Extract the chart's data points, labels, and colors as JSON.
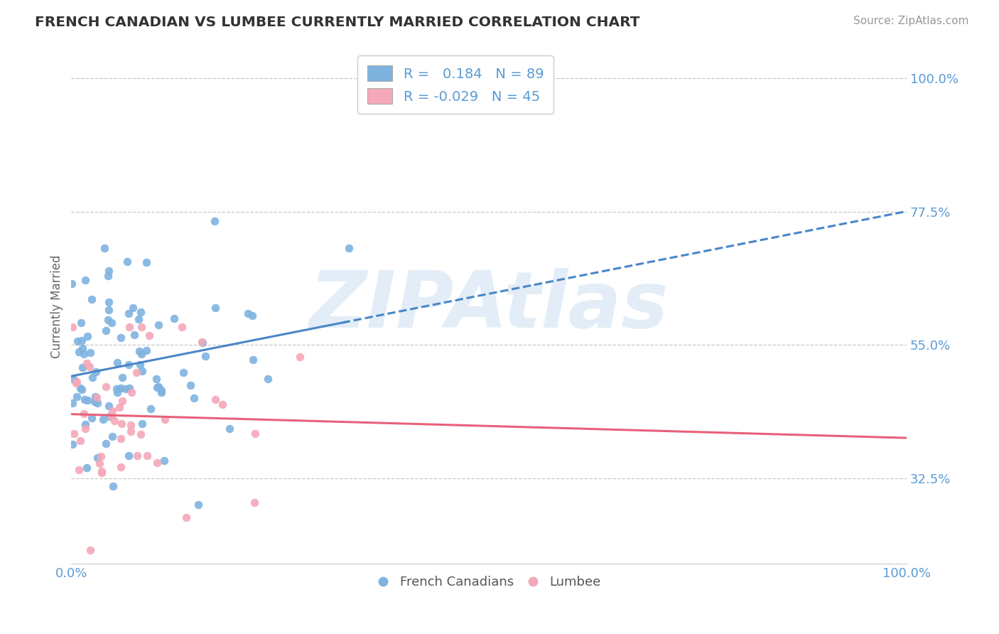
{
  "title": "FRENCH CANADIAN VS LUMBEE CURRENTLY MARRIED CORRELATION CHART",
  "source": "Source: ZipAtlas.com",
  "ylabel": "Currently Married",
  "blue_label": "French Canadians",
  "pink_label": "Lumbee",
  "blue_R": 0.184,
  "blue_N": 89,
  "pink_R": -0.029,
  "pink_N": 45,
  "xlim": [
    0.0,
    1.0
  ],
  "ylim": [
    0.18,
    1.05
  ],
  "yticks": [
    0.325,
    0.55,
    0.775,
    1.0
  ],
  "ytick_labels": [
    "32.5%",
    "55.0%",
    "77.5%",
    "100.0%"
  ],
  "blue_color": "#7eb3e0",
  "blue_line_color": "#4a86c8",
  "pink_color": "#f4a8b8",
  "pink_line_color": "#e8607a",
  "title_color": "#333333",
  "axis_color": "#5b9bd5",
  "watermark": "ZIPAtlas",
  "background_color": "#ffffff",
  "grid_color": "#c8c8c8",
  "blue_intercept": 0.495,
  "blue_slope": 0.09,
  "pink_intercept": 0.455,
  "pink_slope": -0.015
}
